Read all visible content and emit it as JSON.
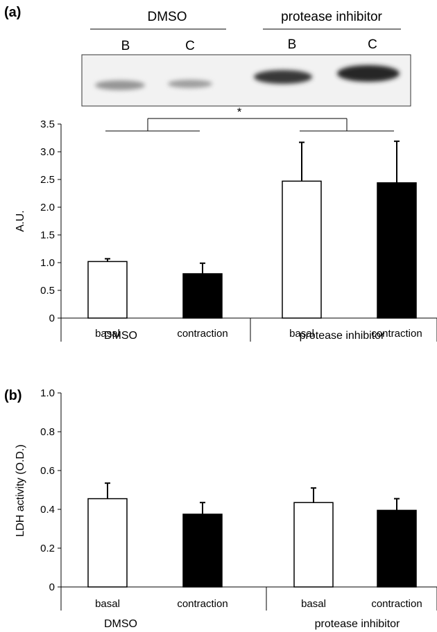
{
  "panel_a": {
    "label": "(a)",
    "blot": {
      "groups": [
        {
          "label": "DMSO",
          "lanes": [
            "B",
            "C"
          ]
        },
        {
          "label": "protease inhibitor",
          "lanes": [
            "B",
            "C"
          ]
        }
      ],
      "band_intensity": [
        0.3,
        0.25,
        0.85,
        0.95
      ]
    },
    "significance_marker": "*"
  },
  "panel_b": {
    "label": "(b)"
  },
  "chart_data": [
    {
      "type": "bar",
      "title": "",
      "xlabel": "",
      "ylabel": "A.U.",
      "ylim": [
        0,
        3.5
      ],
      "yticks": [
        "0",
        "0.5",
        "1.0",
        "1.5",
        "2.0",
        "2.5",
        "3.0",
        "3.5"
      ],
      "groups": [
        "DMSO",
        "protease inhibitor"
      ],
      "categories": [
        "basal",
        "contraction",
        "basal",
        "contraction"
      ],
      "values": [
        1.02,
        0.8,
        2.47,
        2.44
      ],
      "errors": [
        0.05,
        0.19,
        0.7,
        0.75
      ],
      "bar_colors": [
        "#ffffff",
        "#000000",
        "#ffffff",
        "#000000"
      ],
      "grid": false,
      "legend": "none"
    },
    {
      "type": "bar",
      "title": "",
      "xlabel": "",
      "ylabel": "LDH activity (O.D.)",
      "ylim": [
        0,
        1.0
      ],
      "yticks": [
        "0",
        "0.2",
        "0.4",
        "0.6",
        "0.8",
        "1.0"
      ],
      "groups": [
        "DMSO",
        "protease inhibitor"
      ],
      "categories": [
        "basal",
        "contraction",
        "basal",
        "contraction"
      ],
      "values": [
        0.455,
        0.375,
        0.435,
        0.395
      ],
      "errors": [
        0.08,
        0.06,
        0.075,
        0.06
      ],
      "bar_colors": [
        "#ffffff",
        "#000000",
        "#ffffff",
        "#000000"
      ],
      "grid": false,
      "legend": "none"
    }
  ]
}
